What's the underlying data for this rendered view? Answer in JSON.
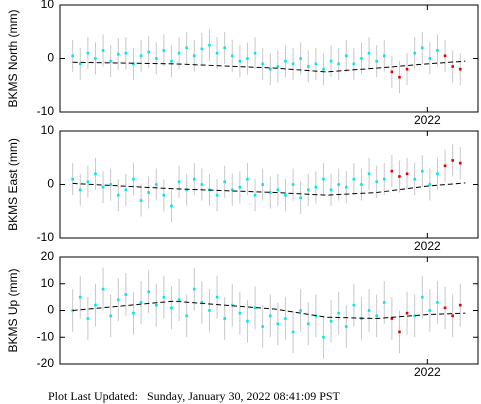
{
  "chart_data": [
    {
      "type": "scatter",
      "ylabel": "BKMS North (mm)",
      "x": [
        2020.6,
        2020.63,
        2020.66,
        2020.69,
        2020.72,
        2020.75,
        2020.78,
        2020.81,
        2020.84,
        2020.87,
        2020.9,
        2020.93,
        2020.96,
        2020.99,
        2021.02,
        2021.05,
        2021.08,
        2021.11,
        2021.14,
        2021.17,
        2021.2,
        2021.23,
        2021.26,
        2021.29,
        2021.32,
        2021.35,
        2021.38,
        2021.41,
        2021.44,
        2021.47,
        2021.5,
        2021.53,
        2021.56,
        2021.59,
        2021.62,
        2021.65,
        2021.68,
        2021.71,
        2021.74,
        2021.77,
        2021.8,
        2021.83,
        2021.86,
        2021.89,
        2021.92,
        2021.95,
        2021.98,
        2022.01,
        2022.04,
        2022.07,
        2022.1,
        2022.13
      ],
      "series": [
        {
          "color": "#00e5ee",
          "error": 3,
          "values": [
            0.5,
            -1,
            1,
            0,
            1.5,
            -0.5,
            0.8,
            1,
            -1,
            0.5,
            1.2,
            0,
            1.5,
            -0.5,
            1,
            2,
            0.5,
            1.8,
            2.5,
            1,
            2,
            0.5,
            -0.5,
            0,
            1,
            -1,
            -2,
            -1.5,
            -0.5,
            -1,
            0,
            -1.5,
            -1,
            -2,
            -0.5,
            -1,
            0.5,
            -1,
            0,
            1,
            -0.5,
            0.5,
            null,
            null,
            null,
            1,
            2,
            0,
            1.5,
            null,
            null,
            null
          ]
        },
        {
          "color": "#e00000",
          "error": 3,
          "values": [
            null,
            null,
            null,
            null,
            null,
            null,
            null,
            null,
            null,
            null,
            null,
            null,
            null,
            null,
            null,
            null,
            null,
            null,
            null,
            null,
            null,
            null,
            null,
            null,
            null,
            null,
            null,
            null,
            null,
            null,
            null,
            null,
            null,
            null,
            null,
            null,
            null,
            null,
            null,
            null,
            null,
            null,
            -2.5,
            -3.5,
            -2,
            null,
            null,
            null,
            null,
            0.5,
            -1.5,
            -2
          ]
        }
      ],
      "trend": {
        "x": [
          2020.6,
          2021.0,
          2021.4,
          2021.6,
          2021.8,
          2022.0,
          2022.15
        ],
        "values": [
          -0.7,
          -1,
          -1.8,
          -2.5,
          -1.8,
          -1,
          -0.5
        ]
      },
      "xlim": [
        2020.55,
        2022.2
      ],
      "xticks": [
        2022
      ],
      "ylim": [
        -10,
        10
      ],
      "yticks": [
        -10,
        0,
        10
      ]
    },
    {
      "type": "scatter",
      "ylabel": "BKMS East (mm)",
      "x": [
        2020.6,
        2020.63,
        2020.66,
        2020.69,
        2020.72,
        2020.75,
        2020.78,
        2020.81,
        2020.84,
        2020.87,
        2020.9,
        2020.93,
        2020.96,
        2020.99,
        2021.02,
        2021.05,
        2021.08,
        2021.11,
        2021.14,
        2021.17,
        2021.2,
        2021.23,
        2021.26,
        2021.29,
        2021.32,
        2021.35,
        2021.38,
        2021.41,
        2021.44,
        2021.47,
        2021.5,
        2021.53,
        2021.56,
        2021.59,
        2021.62,
        2021.65,
        2021.68,
        2021.71,
        2021.74,
        2021.77,
        2021.8,
        2021.83,
        2021.86,
        2021.89,
        2021.92,
        2021.95,
        2021.98,
        2022.01,
        2022.04,
        2022.07,
        2022.1,
        2022.13
      ],
      "series": [
        {
          "color": "#00e5ee",
          "error": 3,
          "values": [
            1,
            -1,
            0.5,
            2,
            -0.5,
            0,
            -2,
            -1,
            1,
            -3,
            -1.5,
            0,
            -2,
            -4,
            0.5,
            -1,
            1,
            0,
            -1,
            -2,
            0.5,
            -1,
            -0.5,
            1,
            -2,
            0,
            -1.5,
            -1,
            -2,
            0,
            -2.5,
            -1,
            -0.5,
            1,
            -1,
            0,
            -0.5,
            1,
            0,
            2,
            0.5,
            1,
            null,
            null,
            null,
            1,
            2.5,
            0,
            2,
            null,
            null,
            null
          ]
        },
        {
          "color": "#e00000",
          "error": 3,
          "values": [
            null,
            null,
            null,
            null,
            null,
            null,
            null,
            null,
            null,
            null,
            null,
            null,
            null,
            null,
            null,
            null,
            null,
            null,
            null,
            null,
            null,
            null,
            null,
            null,
            null,
            null,
            null,
            null,
            null,
            null,
            null,
            null,
            null,
            null,
            null,
            null,
            null,
            null,
            null,
            null,
            null,
            null,
            2.5,
            1.5,
            2,
            null,
            null,
            null,
            null,
            3.5,
            4.5,
            4
          ]
        }
      ],
      "trend": {
        "x": [
          2020.6,
          2021.0,
          2021.4,
          2021.6,
          2021.8,
          2022.0,
          2022.15
        ],
        "values": [
          0.2,
          -0.8,
          -1.5,
          -2,
          -1.5,
          -0.3,
          0.3
        ]
      },
      "xlim": [
        2020.55,
        2022.2
      ],
      "xticks": [
        2022
      ],
      "ylim": [
        -10,
        10
      ],
      "yticks": [
        -10,
        0,
        10
      ]
    },
    {
      "type": "scatter",
      "ylabel": "BKMS Up (mm)",
      "x": [
        2020.6,
        2020.63,
        2020.66,
        2020.69,
        2020.72,
        2020.75,
        2020.78,
        2020.81,
        2020.84,
        2020.87,
        2020.9,
        2020.93,
        2020.96,
        2020.99,
        2021.02,
        2021.05,
        2021.08,
        2021.11,
        2021.14,
        2021.17,
        2021.2,
        2021.23,
        2021.26,
        2021.29,
        2021.32,
        2021.35,
        2021.38,
        2021.41,
        2021.44,
        2021.47,
        2021.5,
        2021.53,
        2021.56,
        2021.59,
        2021.62,
        2021.65,
        2021.68,
        2021.71,
        2021.74,
        2021.77,
        2021.8,
        2021.83,
        2021.86,
        2021.89,
        2021.92,
        2021.95,
        2021.98,
        2022.01,
        2022.04,
        2022.07,
        2022.1,
        2022.13
      ],
      "series": [
        {
          "color": "#00e5ee",
          "error": 8,
          "values": [
            0,
            5,
            -3,
            2,
            8,
            -2,
            4,
            6,
            -1,
            3,
            7,
            2,
            5,
            1,
            4,
            -2,
            8,
            3,
            0,
            5,
            -3,
            2,
            -1,
            -4,
            1,
            -6,
            -2,
            -5,
            -3,
            -8,
            0,
            -5,
            -2,
            -10,
            -4,
            -1,
            -6,
            2,
            -3,
            0,
            -2,
            3,
            null,
            null,
            null,
            -2,
            5,
            0,
            3,
            null,
            null,
            null
          ]
        },
        {
          "color": "#e00000",
          "error": 8,
          "values": [
            null,
            null,
            null,
            null,
            null,
            null,
            null,
            null,
            null,
            null,
            null,
            null,
            null,
            null,
            null,
            null,
            null,
            null,
            null,
            null,
            null,
            null,
            null,
            null,
            null,
            null,
            null,
            null,
            null,
            null,
            null,
            null,
            null,
            null,
            null,
            null,
            null,
            null,
            null,
            null,
            null,
            null,
            -3,
            -8,
            -1,
            null,
            null,
            null,
            null,
            1,
            -2,
            2
          ]
        }
      ],
      "trend": {
        "x": [
          2020.6,
          2021.0,
          2021.4,
          2021.6,
          2021.8,
          2022.0,
          2022.15
        ],
        "values": [
          0,
          3.5,
          0.5,
          -2.5,
          -3,
          -1.5,
          -1
        ]
      },
      "xlim": [
        2020.55,
        2022.2
      ],
      "xticks": [
        2022
      ],
      "ylim": [
        -20,
        20
      ],
      "yticks": [
        -20,
        -10,
        0,
        10,
        20
      ]
    }
  ],
  "footer_label": "Plot Last Updated:",
  "footer_value": "Sunday, January 30, 2022 08:41:09 PST"
}
